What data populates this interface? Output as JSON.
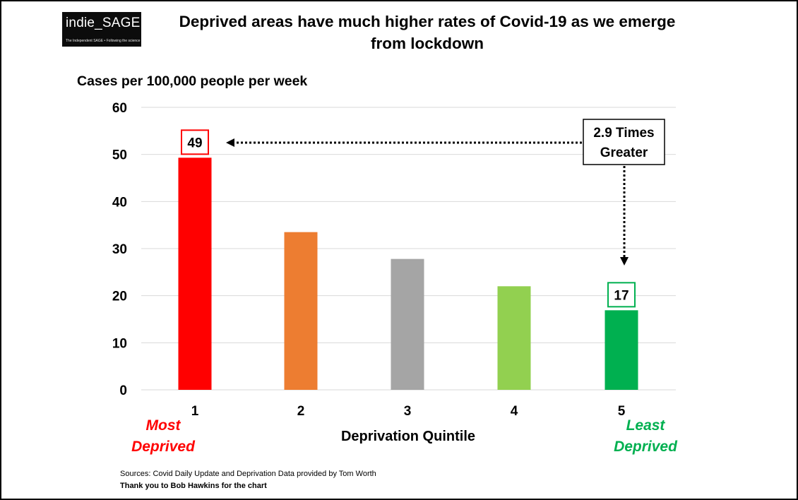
{
  "logo": {
    "text": "indie_SAGE",
    "tagline": "The Independent SAGE • Following the science"
  },
  "title": "Deprived areas have much higher rates of Covid-19 as we emerge from lockdown",
  "chart_data": {
    "type": "bar",
    "title": "Deprived areas have much higher rates of Covid-19 as we emerge from lockdown",
    "ylabel": "Cases per 100,000 people per week",
    "xlabel": "Deprivation Quintile",
    "categories": [
      "1",
      "2",
      "3",
      "4",
      "5"
    ],
    "values": [
      49.3,
      33.5,
      27.8,
      22.0,
      16.9
    ],
    "bar_colors": [
      "#ff0000",
      "#ed7d31",
      "#a5a5a5",
      "#92d050",
      "#00b050"
    ],
    "ylim": [
      0,
      60
    ],
    "yticks": [
      "0",
      "10",
      "20",
      "30",
      "40",
      "50",
      "60"
    ],
    "grid": true,
    "data_labels": [
      {
        "category": "1",
        "text": "49",
        "color": "#ff0000"
      },
      {
        "category": "5",
        "text": "17",
        "color": "#00b050"
      }
    ],
    "annotations": {
      "ratio_box": [
        "2.9 Times",
        "Greater"
      ],
      "most_deprived": [
        "Most",
        "Deprived"
      ],
      "least_deprived": [
        "Least",
        "Deprived"
      ]
    }
  },
  "footer": {
    "sources": "Sources: Covid Daily Update and Deprivation Data provided by Tom Worth",
    "credit": "Thank  you to Bob Hawkins  for the chart"
  }
}
